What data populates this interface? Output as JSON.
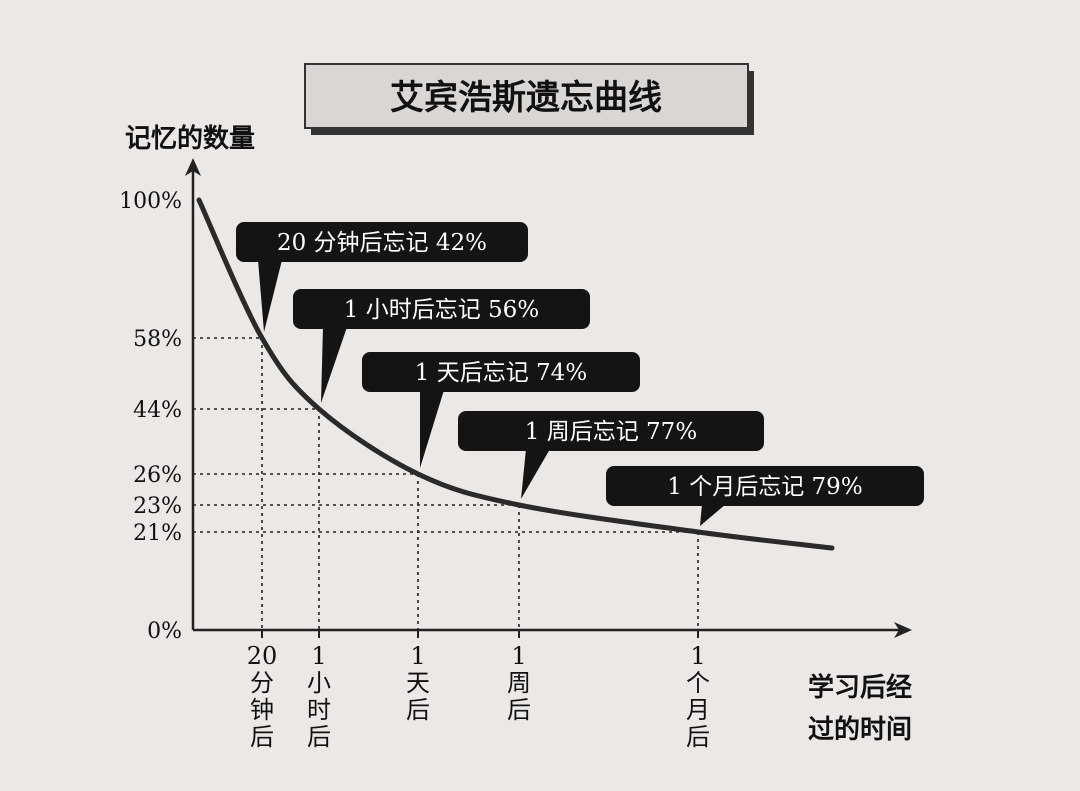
{
  "chart_data": {
    "type": "line",
    "title": "艾宾浩斯遗忘曲线",
    "ylabel": "记忆的数量",
    "xlabel": "学习后经过的时间",
    "y_ticks": [
      "100%",
      "58%",
      "44%",
      "26%",
      "23%",
      "21%",
      "0%"
    ],
    "points": [
      {
        "x": "20分钟后",
        "y": 58,
        "x_label": "20\n分\n钟\n后",
        "callout": "20 分钟后忘记 42%"
      },
      {
        "x": "1小时后",
        "y": 44,
        "x_label": "1\n小\n时\n后",
        "callout": "1 小时后忘记 56%"
      },
      {
        "x": "1天后",
        "y": 26,
        "x_label": "1\n天\n后",
        "callout": "1 天后忘记 74%"
      },
      {
        "x": "1周后",
        "y": 23,
        "x_label": "1\n周\n后",
        "callout": "1 周后忘记 77%"
      },
      {
        "x": "1个月后",
        "y": 21,
        "x_label": "1\n个\n月\n后",
        "callout": "1 个月后忘记 79%"
      }
    ],
    "start_value": 100,
    "ylim": [
      0,
      100
    ],
    "grid": "dotted guide lines from each point to both axes"
  }
}
